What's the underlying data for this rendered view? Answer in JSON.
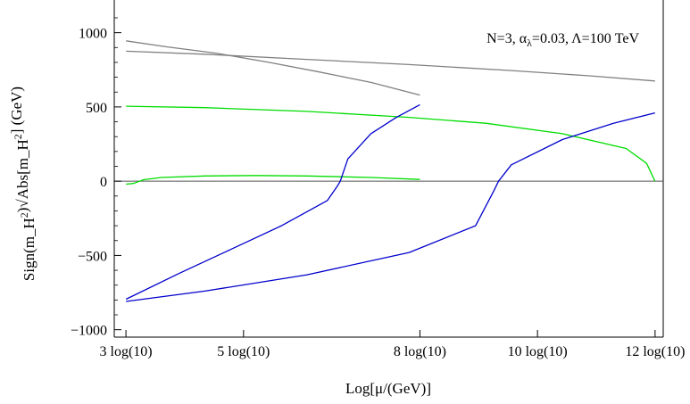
{
  "chart_data": {
    "type": "line",
    "title": "",
    "annotation": "N=3, α_λ=0.03, Λ=100 TeV",
    "xlabel": "Log[μ/(GeV)]",
    "ylabel": "Sign(m_H^2)√Abs[m_H^2]  (GeV)",
    "xlim": [
      6.45,
      27.95
    ],
    "ylim": [
      -1050,
      1220
    ],
    "grid": false,
    "x_ticks": [
      {
        "value": 6.9078,
        "label": "3 log(10)"
      },
      {
        "value": 11.5129,
        "label": "5 log(10)"
      },
      {
        "value": 18.4207,
        "label": "8 log(10)"
      },
      {
        "value": 23.0259,
        "label": "10 log(10)"
      },
      {
        "value": 27.631,
        "label": "12 log(10)"
      }
    ],
    "y_ticks": [
      {
        "value": 1000,
        "label": "1000"
      },
      {
        "value": 500,
        "label": "500"
      },
      {
        "value": 0,
        "label": "0"
      },
      {
        "value": -500,
        "label": "−500"
      },
      {
        "value": -1000,
        "label": "−1000"
      }
    ],
    "series": [
      {
        "color": "#808080",
        "x": [
          6.91,
          8.5,
          10.5,
          12.5,
          14.5,
          16.5,
          18.42
        ],
        "y": [
          945,
          905,
          860,
          800,
          735,
          665,
          580
        ]
      },
      {
        "color": "#808080",
        "x": [
          6.91,
          10,
          14,
          18,
          22,
          25,
          27.63
        ],
        "y": [
          875,
          855,
          820,
          785,
          745,
          710,
          675
        ]
      },
      {
        "color": "#00dd00",
        "x": [
          6.91,
          10,
          14,
          18,
          21,
          24,
          26.5,
          27.3,
          27.63
        ],
        "y": [
          505,
          495,
          470,
          430,
          390,
          320,
          220,
          120,
          0
        ]
      },
      {
        "color": "#00dd00",
        "x": [
          6.91,
          7.2,
          7.6,
          8.3,
          10,
          12,
          14,
          16.5,
          18.42
        ],
        "y": [
          -20,
          -15,
          10,
          25,
          35,
          38,
          35,
          25,
          12
        ]
      },
      {
        "color": "#0000cc",
        "x": [
          6.91,
          9,
          11,
          13,
          14.8,
          15.2,
          15.3,
          15.6,
          16.5,
          17.5,
          18.42
        ],
        "y": [
          -795,
          -620,
          -460,
          -300,
          -130,
          -30,
          0,
          150,
          320,
          430,
          515
        ]
      },
      {
        "color": "#0000cc",
        "x": [
          6.91,
          10,
          14,
          18,
          20.6,
          21.3,
          21.5,
          22,
          24,
          26,
          27.63
        ],
        "y": [
          -810,
          -740,
          -630,
          -480,
          -300,
          -70,
          0,
          110,
          280,
          390,
          460
        ]
      }
    ]
  }
}
